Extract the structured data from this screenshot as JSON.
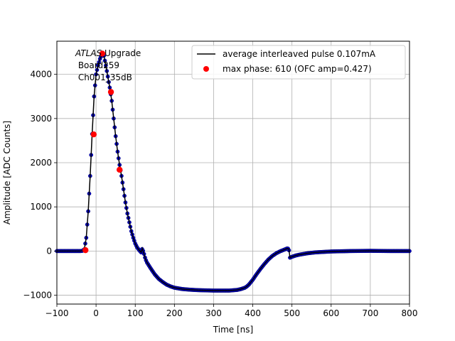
{
  "chart_data": {
    "type": "scatter",
    "xlabel": "Time [ns]",
    "ylabel": "Amplitude [ADC Counts]",
    "xlim": [
      -100,
      800
    ],
    "ylim": [
      -1200,
      4750
    ],
    "xticks": [
      -100,
      0,
      100,
      200,
      300,
      400,
      500,
      600,
      700,
      800
    ],
    "yticks": [
      -1000,
      0,
      1000,
      2000,
      3000,
      4000
    ],
    "grid": true,
    "legend_position": "top-right",
    "annotation": {
      "line1_italic": "ATLAS",
      "line1_rest": " Upgrade",
      "line2": " Board259",
      "line3": " Ch001_35dB"
    },
    "legend": [
      {
        "label": "average interleaved pulse 0.107mA",
        "kind": "line",
        "color": "#000000"
      },
      {
        "label": "max phase: 610 (OFC amp=0.427)",
        "kind": "marker",
        "color": "#ff0000"
      }
    ],
    "series": [
      {
        "kind": "samples",
        "color": "#0000cc",
        "edge_color": "#000066",
        "x": [
          -100,
          -80,
          -60,
          -40,
          -35,
          -30,
          -25,
          -20,
          -15,
          -10,
          -5,
          0,
          5,
          10,
          15,
          20,
          25,
          30,
          35,
          40,
          45,
          50,
          55,
          60,
          65,
          70,
          75,
          80,
          85,
          90,
          95,
          100,
          105,
          110,
          115,
          118,
          122,
          126,
          130,
          140,
          150,
          160,
          170,
          180,
          190,
          200,
          220,
          240,
          260,
          280,
          300,
          320,
          340,
          360,
          370,
          380,
          385,
          390,
          400,
          410,
          420,
          430,
          440,
          450,
          460,
          470,
          480,
          488,
          492,
          495,
          500,
          510,
          520,
          540,
          560,
          600,
          650,
          700,
          750,
          800
        ],
        "y": [
          0,
          0,
          0,
          0,
          5,
          40,
          300,
          900,
          1700,
          2650,
          3500,
          4000,
          4200,
          4350,
          4450,
          4420,
          4200,
          3950,
          3700,
          3400,
          3000,
          2600,
          2250,
          1950,
          1700,
          1400,
          1100,
          850,
          650,
          450,
          300,
          170,
          80,
          20,
          -30,
          60,
          -50,
          -180,
          -260,
          -400,
          -530,
          -630,
          -700,
          -760,
          -800,
          -830,
          -860,
          -875,
          -885,
          -890,
          -895,
          -895,
          -895,
          -880,
          -860,
          -830,
          -800,
          -760,
          -650,
          -520,
          -400,
          -290,
          -190,
          -110,
          -50,
          -5,
          30,
          60,
          50,
          -150,
          -130,
          -100,
          -80,
          -50,
          -30,
          -10,
          0,
          5,
          0,
          0
        ]
      },
      {
        "name": "average interleaved pulse 0.107mA",
        "kind": "line",
        "color": "#000000",
        "x": [
          -100,
          -80,
          -60,
          -40,
          -35,
          -30,
          -25,
          -20,
          -15,
          -10,
          -5,
          0,
          5,
          10,
          15,
          20,
          25,
          30,
          35,
          40,
          45,
          50,
          55,
          60,
          65,
          70,
          75,
          80,
          85,
          90,
          95,
          100,
          105,
          110,
          115,
          118,
          122,
          126,
          130,
          140,
          150,
          160,
          170,
          180,
          190,
          200,
          220,
          240,
          260,
          280,
          300,
          320,
          340,
          360,
          370,
          380,
          385,
          390,
          400,
          410,
          420,
          430,
          440,
          450,
          460,
          470,
          480,
          488,
          492,
          495,
          500,
          510,
          520,
          540,
          560,
          600,
          650,
          700,
          750,
          800
        ],
        "y": [
          0,
          0,
          0,
          0,
          5,
          40,
          300,
          900,
          1700,
          2650,
          3500,
          4000,
          4200,
          4350,
          4450,
          4420,
          4200,
          3950,
          3700,
          3400,
          3000,
          2600,
          2250,
          1950,
          1700,
          1400,
          1100,
          850,
          650,
          450,
          300,
          170,
          80,
          20,
          -30,
          60,
          -50,
          -180,
          -260,
          -400,
          -530,
          -630,
          -700,
          -760,
          -800,
          -830,
          -860,
          -875,
          -885,
          -890,
          -895,
          -895,
          -895,
          -880,
          -860,
          -830,
          -800,
          -760,
          -650,
          -520,
          -400,
          -290,
          -190,
          -110,
          -50,
          -5,
          30,
          60,
          50,
          -150,
          -130,
          -100,
          -80,
          -50,
          -30,
          -10,
          0,
          5,
          0,
          0
        ]
      },
      {
        "name": "max phase: 610 (OFC amp=0.427)",
        "kind": "points",
        "color": "#ff0000",
        "x": [
          -27,
          -6,
          16,
          38,
          60
        ],
        "y": [
          20,
          2640,
          4470,
          3600,
          1840
        ]
      }
    ]
  }
}
